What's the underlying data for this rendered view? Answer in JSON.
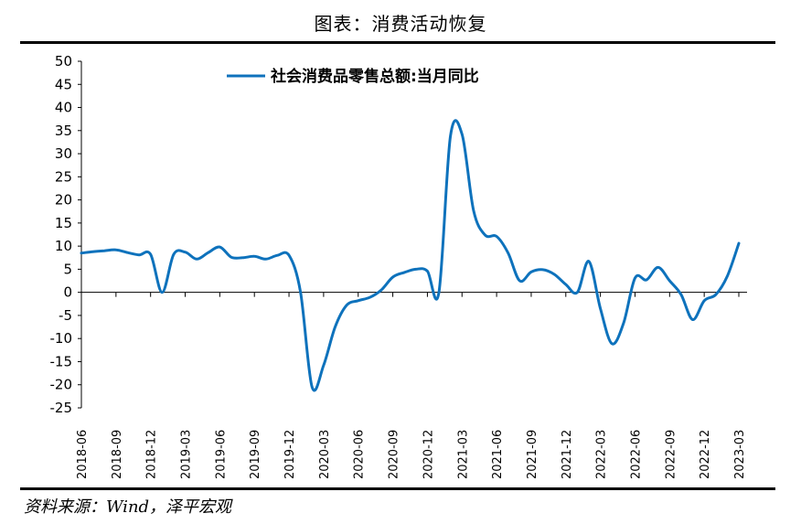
{
  "figure_title": "图表：消费活动恢复",
  "source": "资料来源：Wind，泽平宏观",
  "chart_data": {
    "type": "line",
    "legend": "社会消费品零售总额:当月同比",
    "color": "#0e72bc",
    "ylim": [
      -25,
      50
    ],
    "yticks": [
      50,
      45,
      40,
      35,
      30,
      25,
      20,
      15,
      10,
      5,
      0,
      -5,
      -10,
      -15,
      -20,
      -25
    ],
    "xticks": [
      "2018-06",
      "2018-09",
      "2018-12",
      "2019-03",
      "2019-06",
      "2019-09",
      "2019-12",
      "2020-03",
      "2020-06",
      "2020-09",
      "2020-12",
      "2021-03",
      "2021-06",
      "2021-09",
      "2021-12",
      "2022-03",
      "2022-06",
      "2022-09",
      "2022-12",
      "2023-03"
    ],
    "x": [
      "2018-06",
      "2018-07",
      "2018-08",
      "2018-09",
      "2018-10",
      "2018-11",
      "2018-12",
      "2019-01",
      "2019-02",
      "2019-03",
      "2019-04",
      "2019-05",
      "2019-06",
      "2019-07",
      "2019-08",
      "2019-09",
      "2019-10",
      "2019-11",
      "2019-12",
      "2020-01",
      "2020-02",
      "2020-03",
      "2020-04",
      "2020-05",
      "2020-06",
      "2020-07",
      "2020-08",
      "2020-09",
      "2020-10",
      "2020-11",
      "2020-12",
      "2021-01",
      "2021-02",
      "2021-03",
      "2021-04",
      "2021-05",
      "2021-06",
      "2021-07",
      "2021-08",
      "2021-09",
      "2021-10",
      "2021-11",
      "2021-12",
      "2022-01",
      "2022-02",
      "2022-03",
      "2022-04",
      "2022-05",
      "2022-06",
      "2022-07",
      "2022-08",
      "2022-09",
      "2022-10",
      "2022-11",
      "2022-12",
      "2023-01",
      "2023-02",
      "2023-03"
    ],
    "values": [
      8.5,
      8.8,
      9.0,
      9.2,
      8.6,
      8.1,
      8.2,
      0.0,
      8.2,
      8.7,
      7.2,
      8.6,
      9.8,
      7.6,
      7.5,
      7.8,
      7.2,
      8.0,
      8.0,
      0.0,
      -20.5,
      -15.8,
      -7.5,
      -2.8,
      -1.8,
      -1.1,
      0.5,
      3.3,
      4.3,
      5.0,
      4.6,
      0.0,
      33.8,
      34.2,
      17.7,
      12.4,
      12.1,
      8.5,
      2.5,
      4.4,
      4.9,
      3.9,
      1.7,
      0.0,
      6.7,
      -3.5,
      -11.1,
      -6.7,
      3.1,
      2.7,
      5.4,
      2.5,
      -0.5,
      -5.9,
      -1.8,
      -0.5,
      3.5,
      10.6
    ]
  }
}
